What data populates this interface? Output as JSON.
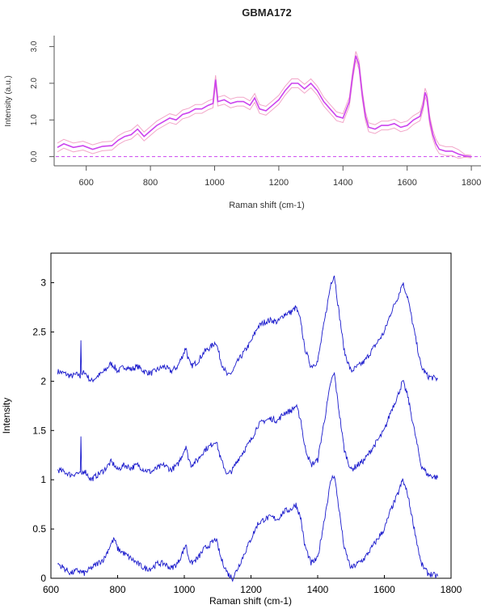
{
  "chart_data": [
    {
      "type": "line",
      "title": "GBMA172",
      "xlabel": "Raman shift (cm-1)",
      "ylabel": "Intensity (a.u.)",
      "xlim": [
        500,
        1830
      ],
      "ylim": [
        -0.25,
        3.3
      ],
      "x_ticks": [
        600,
        800,
        1000,
        1200,
        1400,
        1600,
        1800
      ],
      "y_ticks": [
        0.0,
        1.0,
        2.0,
        3.0
      ],
      "y_tick_labels": [
        "0.0",
        "1.0",
        "2.0",
        "3.0"
      ],
      "baseline": 0.0,
      "band_width": 0.12,
      "colors": {
        "mean": "#cc44ee",
        "band": "#f2a6c8",
        "baseline": "#cc44ee",
        "axis": "#555555"
      },
      "series": [
        {
          "x": [
            510,
            530,
            560,
            590,
            620,
            650,
            680,
            700,
            720,
            740,
            760,
            780,
            800,
            820,
            840,
            860,
            880,
            900,
            920,
            940,
            960,
            980,
            995,
            1003,
            1010,
            1030,
            1050,
            1070,
            1090,
            1110,
            1125,
            1140,
            1160,
            1180,
            1200,
            1220,
            1240,
            1260,
            1280,
            1300,
            1320,
            1340,
            1360,
            1380,
            1400,
            1420,
            1430,
            1440,
            1450,
            1460,
            1470,
            1480,
            1500,
            1520,
            1540,
            1560,
            1580,
            1600,
            1620,
            1640,
            1650,
            1656,
            1662,
            1670,
            1680,
            1690,
            1700,
            1720,
            1740,
            1760,
            1780,
            1800
          ],
          "values": [
            0.25,
            0.35,
            0.25,
            0.3,
            0.2,
            0.28,
            0.3,
            0.45,
            0.55,
            0.6,
            0.75,
            0.55,
            0.7,
            0.85,
            0.95,
            1.05,
            1.0,
            1.15,
            1.2,
            1.3,
            1.3,
            1.4,
            1.45,
            2.1,
            1.5,
            1.55,
            1.45,
            1.5,
            1.5,
            1.4,
            1.6,
            1.3,
            1.25,
            1.4,
            1.55,
            1.8,
            2.0,
            2.0,
            1.85,
            2.0,
            1.8,
            1.5,
            1.3,
            1.1,
            1.05,
            1.5,
            2.2,
            2.75,
            2.5,
            1.7,
            1.1,
            0.8,
            0.75,
            0.85,
            0.85,
            0.9,
            0.8,
            0.85,
            1.0,
            1.1,
            1.4,
            1.75,
            1.6,
            1.0,
            0.6,
            0.35,
            0.2,
            0.15,
            0.15,
            0.07,
            0.02,
            0.0
          ]
        }
      ]
    },
    {
      "type": "line",
      "xlabel": "Raman shift (cm-1)",
      "ylabel": "Intensity",
      "xlim": [
        600,
        1800
      ],
      "ylim": [
        0,
        3.3
      ],
      "x_ticks": [
        600,
        800,
        1000,
        1200,
        1400,
        1600,
        1800
      ],
      "y_ticks": [
        0,
        0.5,
        1,
        1.5,
        2,
        2.5,
        3
      ],
      "y_tick_labels": [
        "0",
        "0.5",
        "1",
        "1.5",
        "2",
        "2.5",
        "3"
      ],
      "colors": {
        "line": "#1a1acc",
        "axis": "#000000"
      },
      "series": [
        {
          "x": [
            620,
            640,
            660,
            680,
            688,
            690,
            692,
            700,
            720,
            740,
            760,
            780,
            790,
            800,
            820,
            840,
            860,
            880,
            900,
            920,
            940,
            960,
            980,
            1000,
            1005,
            1010,
            1020,
            1040,
            1060,
            1080,
            1095,
            1110,
            1130,
            1145,
            1160,
            1180,
            1200,
            1220,
            1240,
            1260,
            1280,
            1300,
            1320,
            1335,
            1350,
            1360,
            1380,
            1400,
            1420,
            1440,
            1450,
            1460,
            1480,
            1500,
            1520,
            1540,
            1560,
            1580,
            1600,
            1620,
            1640,
            1655,
            1670,
            1690,
            1710,
            1730,
            1750,
            1760
          ],
          "values": [
            2.1,
            2.08,
            2.05,
            2.07,
            2.05,
            2.42,
            2.05,
            2.1,
            2.0,
            2.05,
            2.1,
            2.18,
            2.15,
            2.1,
            2.15,
            2.12,
            2.15,
            2.1,
            2.08,
            2.12,
            2.15,
            2.1,
            2.15,
            2.3,
            2.35,
            2.25,
            2.15,
            2.2,
            2.3,
            2.35,
            2.4,
            2.2,
            2.05,
            2.1,
            2.2,
            2.3,
            2.4,
            2.55,
            2.6,
            2.62,
            2.6,
            2.68,
            2.7,
            2.75,
            2.6,
            2.35,
            2.15,
            2.2,
            2.6,
            3.0,
            3.08,
            2.8,
            2.3,
            2.1,
            2.15,
            2.2,
            2.3,
            2.4,
            2.5,
            2.7,
            2.85,
            3.0,
            2.85,
            2.5,
            2.15,
            2.05,
            2.03,
            2.02
          ]
        },
        {
          "x": [
            620,
            640,
            660,
            680,
            688,
            690,
            692,
            700,
            720,
            740,
            760,
            780,
            790,
            800,
            820,
            840,
            860,
            880,
            900,
            920,
            940,
            960,
            980,
            1000,
            1005,
            1010,
            1020,
            1040,
            1060,
            1080,
            1095,
            1110,
            1130,
            1145,
            1160,
            1180,
            1200,
            1220,
            1240,
            1260,
            1280,
            1300,
            1320,
            1335,
            1350,
            1360,
            1380,
            1400,
            1420,
            1440,
            1450,
            1460,
            1480,
            1500,
            1520,
            1540,
            1560,
            1580,
            1600,
            1620,
            1640,
            1655,
            1670,
            1690,
            1710,
            1730,
            1750,
            1760
          ],
          "values": [
            1.1,
            1.08,
            1.05,
            1.07,
            1.05,
            1.42,
            1.05,
            1.1,
            1.0,
            1.05,
            1.1,
            1.18,
            1.15,
            1.1,
            1.15,
            1.12,
            1.15,
            1.1,
            1.08,
            1.12,
            1.15,
            1.1,
            1.15,
            1.3,
            1.35,
            1.25,
            1.15,
            1.2,
            1.3,
            1.35,
            1.4,
            1.2,
            1.05,
            1.1,
            1.2,
            1.3,
            1.4,
            1.55,
            1.6,
            1.62,
            1.6,
            1.68,
            1.7,
            1.75,
            1.6,
            1.35,
            1.15,
            1.2,
            1.6,
            2.0,
            2.08,
            1.8,
            1.3,
            1.1,
            1.15,
            1.2,
            1.3,
            1.4,
            1.5,
            1.7,
            1.85,
            2.0,
            1.85,
            1.5,
            1.15,
            1.05,
            1.03,
            1.02
          ]
        },
        {
          "x": [
            620,
            640,
            660,
            680,
            700,
            720,
            740,
            760,
            780,
            790,
            800,
            820,
            840,
            860,
            880,
            900,
            920,
            940,
            960,
            980,
            1000,
            1005,
            1010,
            1020,
            1040,
            1060,
            1080,
            1095,
            1110,
            1130,
            1145,
            1160,
            1180,
            1200,
            1220,
            1240,
            1260,
            1280,
            1300,
            1320,
            1335,
            1350,
            1360,
            1380,
            1400,
            1420,
            1440,
            1450,
            1460,
            1480,
            1500,
            1520,
            1540,
            1560,
            1580,
            1600,
            1620,
            1640,
            1655,
            1670,
            1690,
            1710,
            1730,
            1750,
            1760
          ],
          "values": [
            0.15,
            0.1,
            0.05,
            0.08,
            0.05,
            0.1,
            0.15,
            0.2,
            0.35,
            0.4,
            0.3,
            0.25,
            0.2,
            0.15,
            0.1,
            0.1,
            0.15,
            0.15,
            0.1,
            0.15,
            0.3,
            0.35,
            0.25,
            0.15,
            0.2,
            0.3,
            0.35,
            0.4,
            0.2,
            0.05,
            0.0,
            0.1,
            0.25,
            0.4,
            0.55,
            0.6,
            0.62,
            0.6,
            0.68,
            0.7,
            0.75,
            0.6,
            0.35,
            0.15,
            0.2,
            0.6,
            1.0,
            1.05,
            0.8,
            0.3,
            0.1,
            0.15,
            0.2,
            0.3,
            0.4,
            0.5,
            0.7,
            0.85,
            1.0,
            0.85,
            0.5,
            0.15,
            0.05,
            0.03,
            0.02
          ]
        }
      ]
    }
  ]
}
